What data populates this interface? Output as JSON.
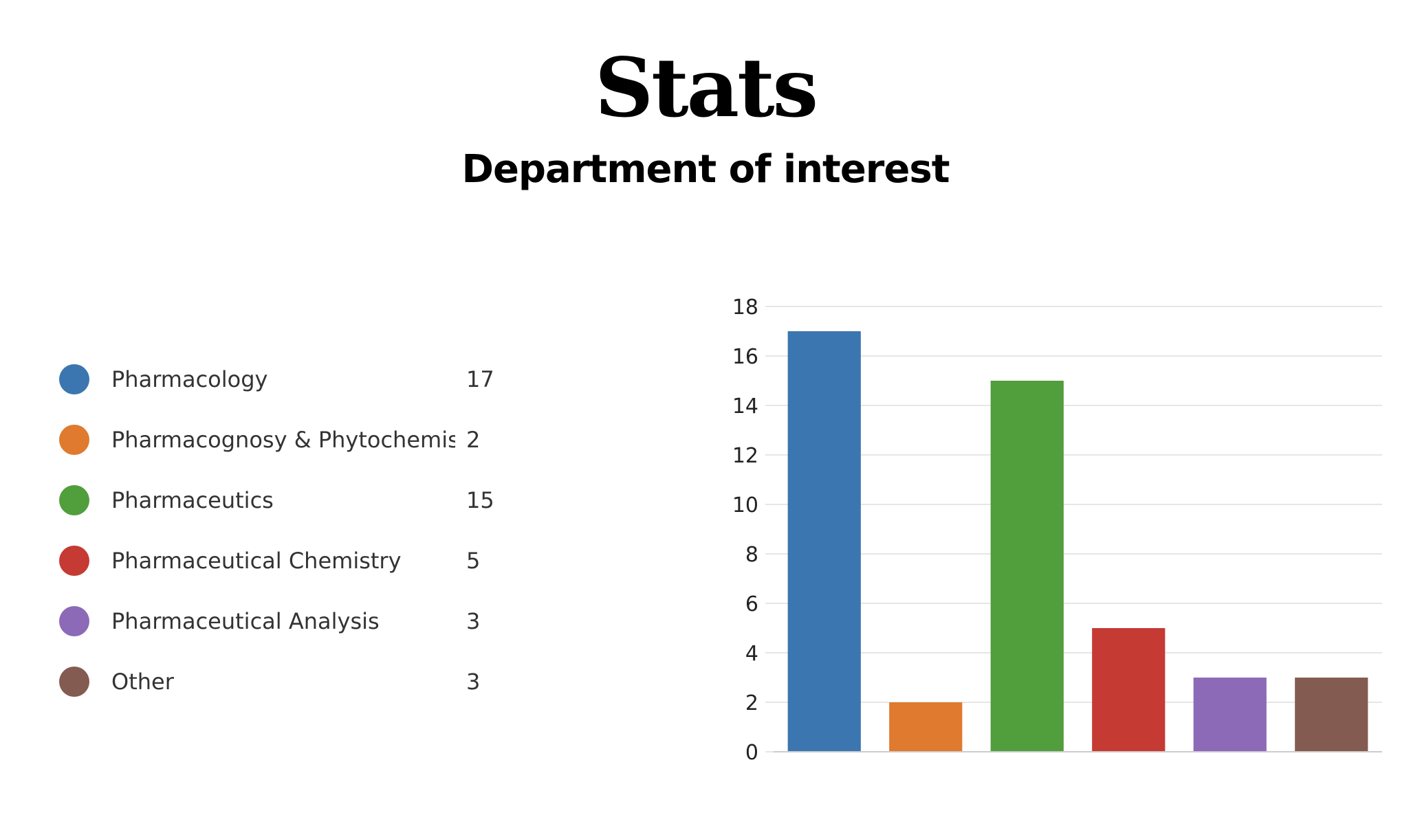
{
  "header": {
    "title": "Stats",
    "subtitle": "Department of interest"
  },
  "legend": {
    "items": [
      {
        "label": "Pharmacology",
        "value": "17",
        "color": "#3b76b0"
      },
      {
        "label": "Pharmacognosy & Phytochemis...",
        "value": "2",
        "color": "#df7a2e"
      },
      {
        "label": "Pharmaceutics",
        "value": "15",
        "color": "#519e3d"
      },
      {
        "label": "Pharmaceutical Chemistry",
        "value": "5",
        "color": "#c53a33"
      },
      {
        "label": "Pharmaceutical Analysis",
        "value": "3",
        "color": "#8c6ab7"
      },
      {
        "label": "Other",
        "value": "3",
        "color": "#845b51"
      }
    ]
  },
  "chart_data": {
    "type": "bar",
    "categories": [
      "Pharmacology",
      "Pharmacognosy & Phytochemis...",
      "Pharmaceutics",
      "Pharmaceutical Chemistry",
      "Pharmaceutical Analysis",
      "Other"
    ],
    "values": [
      17,
      2,
      15,
      5,
      3,
      3
    ],
    "colors": [
      "#3b76b0",
      "#df7a2e",
      "#519e3d",
      "#c53a33",
      "#8c6ab7",
      "#845b51"
    ],
    "ylim": [
      0,
      18
    ],
    "yticks": [
      "0",
      "2",
      "4",
      "6",
      "8",
      "10",
      "12",
      "14",
      "16",
      "18"
    ],
    "grid": true,
    "legend_placement": "left"
  }
}
